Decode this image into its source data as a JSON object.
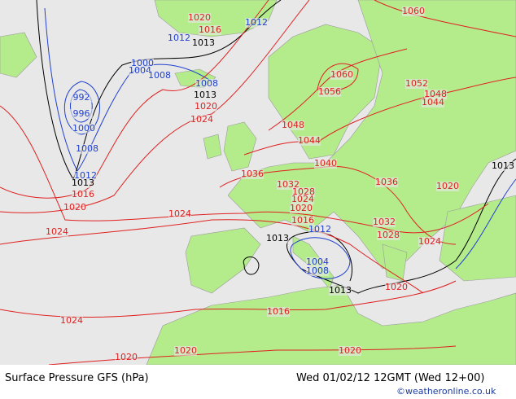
{
  "map": {
    "isobar_labels": [
      {
        "text": "1020",
        "color": "#e02020"
      },
      {
        "text": "1016",
        "color": "#e02020"
      },
      {
        "text": "1012",
        "color": "#2040d0"
      },
      {
        "text": "1012",
        "color": "#2040d0"
      },
      {
        "text": "1013",
        "color": "#000000"
      },
      {
        "text": "1060",
        "color": "#e02020"
      },
      {
        "text": "1000",
        "color": "#2040d0"
      },
      {
        "text": "1004",
        "color": "#2040d0"
      },
      {
        "text": "1008",
        "color": "#2040d0"
      },
      {
        "text": "1008",
        "color": "#2040d0"
      },
      {
        "text": "1013",
        "color": "#000000"
      },
      {
        "text": "1020",
        "color": "#e02020"
      },
      {
        "text": "1024",
        "color": "#e02020"
      },
      {
        "text": "1060",
        "color": "#e02020"
      },
      {
        "text": "1056",
        "color": "#e02020"
      },
      {
        "text": "1052",
        "color": "#e02020"
      },
      {
        "text": "1048",
        "color": "#e02020"
      },
      {
        "text": "1044",
        "color": "#e02020"
      },
      {
        "text": "1048",
        "color": "#e02020"
      },
      {
        "text": "1044",
        "color": "#e02020"
      },
      {
        "text": "992",
        "color": "#2040d0"
      },
      {
        "text": "996",
        "color": "#2040d0"
      },
      {
        "text": "1000",
        "color": "#2040d0"
      },
      {
        "text": "1008",
        "color": "#2040d0"
      },
      {
        "text": "1012",
        "color": "#2040d0"
      },
      {
        "text": "1013",
        "color": "#000000"
      },
      {
        "text": "1016",
        "color": "#e02020"
      },
      {
        "text": "1020",
        "color": "#e02020"
      },
      {
        "text": "1040",
        "color": "#e02020"
      },
      {
        "text": "1036",
        "color": "#e02020"
      },
      {
        "text": "1036",
        "color": "#e02020"
      },
      {
        "text": "1032",
        "color": "#e02020"
      },
      {
        "text": "1028",
        "color": "#e02020"
      },
      {
        "text": "1024",
        "color": "#e02020"
      },
      {
        "text": "1020",
        "color": "#e02020"
      },
      {
        "text": "1013",
        "color": "#000000"
      },
      {
        "text": "1020",
        "color": "#e02020"
      },
      {
        "text": "1024",
        "color": "#e02020"
      },
      {
        "text": "1016",
        "color": "#e02020"
      },
      {
        "text": "1012",
        "color": "#2040d0"
      },
      {
        "text": "1032",
        "color": "#e02020"
      },
      {
        "text": "1028",
        "color": "#e02020"
      },
      {
        "text": "1024",
        "color": "#e02020"
      },
      {
        "text": "1024",
        "color": "#e02020"
      },
      {
        "text": "1013",
        "color": "#000000"
      },
      {
        "text": "1004",
        "color": "#2040d0"
      },
      {
        "text": "1008",
        "color": "#2040d0"
      },
      {
        "text": "1013",
        "color": "#000000"
      },
      {
        "text": "1020",
        "color": "#e02020"
      },
      {
        "text": "1016",
        "color": "#e02020"
      },
      {
        "text": "1024",
        "color": "#e02020"
      },
      {
        "text": "1020",
        "color": "#e02020"
      },
      {
        "text": "1020",
        "color": "#e02020"
      },
      {
        "text": "1020",
        "color": "#e02020"
      }
    ],
    "footer": {
      "title": "Surface Pressure GFS (hPa)",
      "date": "Wed 01/02/12 12GMT  (Wed 12+00)",
      "credit": "©weatheronline.co.uk"
    }
  }
}
